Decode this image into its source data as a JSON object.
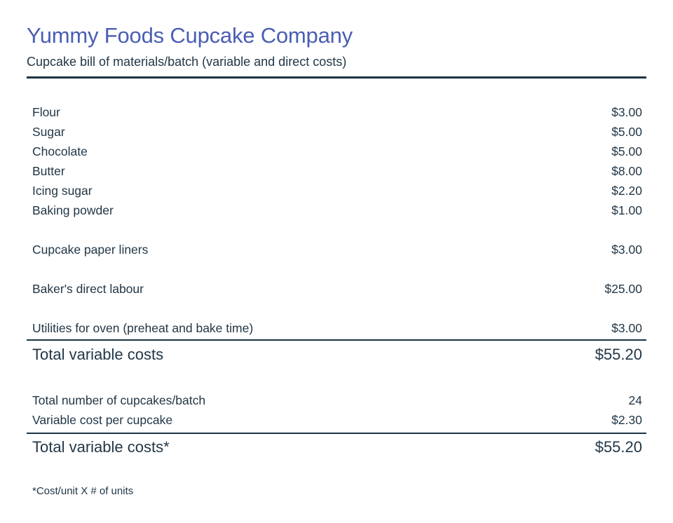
{
  "page": {
    "title": "Yummy Foods Cupcake Company",
    "subtitle": "Cupcake bill of materials/batch (variable and direct costs)",
    "footnote": "*Cost/unit X # of units"
  },
  "colors": {
    "accent_title": "#4a5eb4",
    "body_text": "#223747",
    "rule": "#1d3340",
    "background": "#ffffff"
  },
  "statement": {
    "ingredient_rows": [
      {
        "label": "Flour",
        "value": "$3.00"
      },
      {
        "label": "Sugar",
        "value": "$5.00"
      },
      {
        "label": "Chocolate",
        "value": "$5.00"
      },
      {
        "label": "Butter",
        "value": "$8.00"
      },
      {
        "label": "Icing sugar",
        "value": "$2.20"
      },
      {
        "label": "Baking powder",
        "value": "$1.00"
      }
    ],
    "other_cost_rows": [
      {
        "label": "Cupcake paper liners",
        "value": "$3.00"
      },
      {
        "label": "Baker's direct labour",
        "value": "$25.00"
      },
      {
        "label": "Utilities for oven (preheat and bake time)",
        "value": "$3.00"
      }
    ],
    "total_variable_costs": {
      "label": "Total variable costs",
      "value": "$55.20"
    },
    "per_unit_rows": [
      {
        "label": "Total number of cupcakes/batch",
        "value": "24"
      },
      {
        "label": "Variable cost per cupcake",
        "value": "$2.30"
      }
    ],
    "total_variable_costs_starred": {
      "label": "Total variable costs*",
      "value": "$55.20"
    }
  }
}
